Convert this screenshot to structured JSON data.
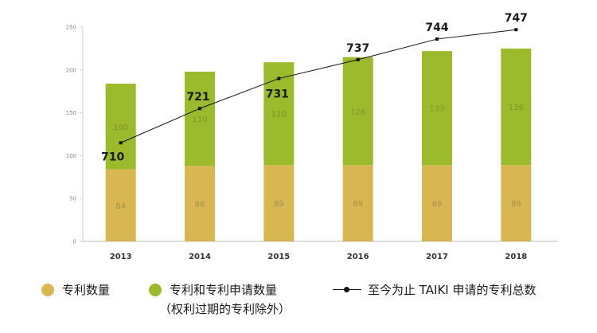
{
  "chart_data": {
    "type": "bar",
    "stacked": true,
    "categories": [
      "2013",
      "2014",
      "2015",
      "2016",
      "2017",
      "2018"
    ],
    "series": [
      {
        "name": "专利数量",
        "values": [
          84,
          88,
          89,
          89,
          89,
          89
        ],
        "color": "#d8b752"
      },
      {
        "name": "专利和专利申请数量",
        "values": [
          100,
          110,
          120,
          126,
          133,
          136
        ],
        "color": "#9bbb2c"
      }
    ],
    "line_series": {
      "name": "至今为止 TAIKI 申请的专利总数",
      "values": [
        710,
        721,
        731,
        737,
        744,
        747
      ],
      "display_y": [
        115,
        155,
        190,
        212,
        236,
        247
      ],
      "color": "#111111"
    },
    "yticks": [
      0,
      50,
      100,
      150,
      200,
      250
    ],
    "ylim": [
      0,
      250
    ],
    "grid": false,
    "legend_position": "bottom"
  },
  "legend": {
    "patent_count": "专利数量",
    "patent_and_application": "专利和专利申请数量",
    "patent_and_application_note": "（权利过期的专利除外）",
    "total_line": "至今为止 TAIKI 申请的专利总数"
  }
}
